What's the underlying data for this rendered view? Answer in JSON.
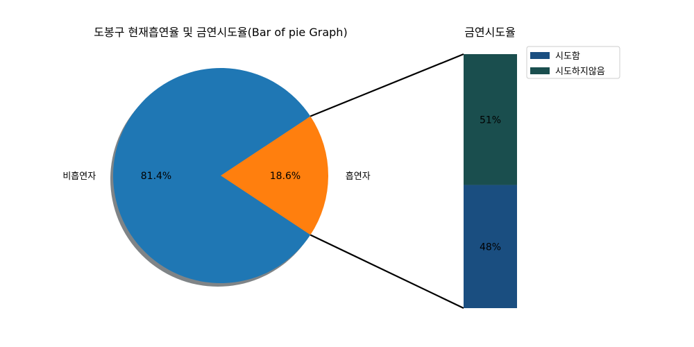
{
  "chart_data": [
    {
      "type": "pie",
      "title": "도봉구 현재흡연율 및 금연시도율(Bar of pie Graph)",
      "categories": [
        "흡연자",
        "비흡연자"
      ],
      "values": [
        18.6,
        81.4
      ],
      "value_labels": [
        "18.6%",
        "81.4%"
      ],
      "colors": [
        "#ff7f0e",
        "#1f77b4"
      ],
      "shadow": true
    },
    {
      "type": "bar",
      "stacked": true,
      "title": "금연시도율",
      "categories": [
        "시도함",
        "시도하지않음"
      ],
      "values": [
        48,
        51
      ],
      "value_labels": [
        "48%",
        "51%"
      ],
      "colors": [
        "#1a4e80",
        "#1a4e4e"
      ],
      "legend": [
        "시도함",
        "시도하지않음"
      ],
      "legend_position": "top-right"
    }
  ]
}
